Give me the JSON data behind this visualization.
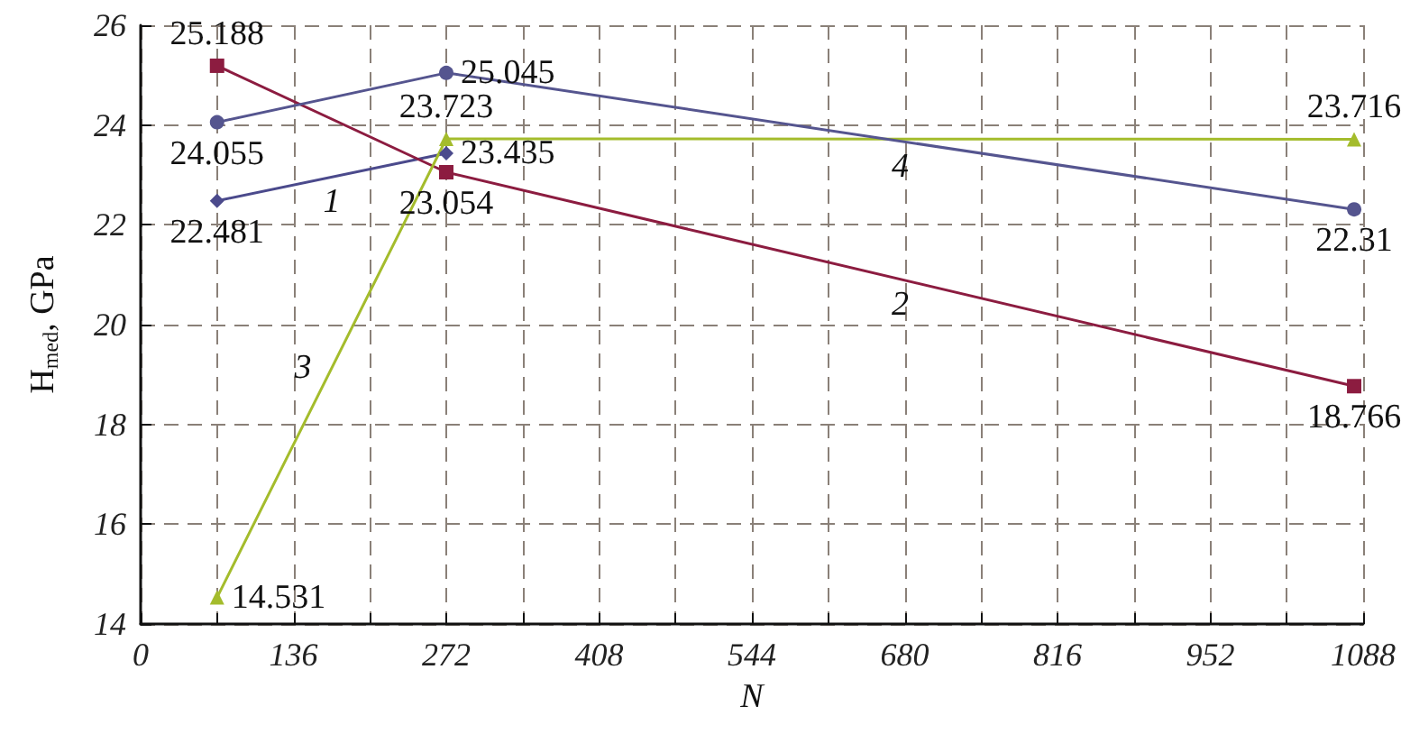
{
  "chart_data": {
    "type": "line",
    "xlabel": "N",
    "ylabel": "H$_{med}$, GPa",
    "xlim": [
      0,
      1088
    ],
    "xticks": [
      0,
      {
        "value": 68,
        "label": null
      },
      136,
      {
        "value": 204,
        "label": null
      },
      272,
      {
        "value": 340,
        "label": null
      },
      408,
      {
        "value": 476,
        "label": null
      },
      544,
      {
        "value": 612,
        "label": null
      },
      680,
      {
        "value": 748,
        "label": null
      },
      816,
      {
        "value": 884,
        "label": null
      },
      952,
      {
        "value": 1020,
        "label": null
      },
      1088
    ],
    "ylim": [
      14,
      26
    ],
    "yticks": [
      14,
      16,
      18,
      20,
      22,
      24,
      26
    ],
    "grid": true,
    "line_style": "solid",
    "data_labels": true,
    "series": [
      {
        "name": "1",
        "color": "#4b4a8c",
        "marker": "diamond",
        "x": [
          68,
          272
        ],
        "values": [
          22.481,
          23.435
        ]
      },
      {
        "name": "2",
        "color": "#8c1c40",
        "marker": "square",
        "x": [
          68,
          272,
          1080
        ],
        "values": [
          25.188,
          23.054,
          18.766
        ]
      },
      {
        "name": "3",
        "color": "#a4bc2c",
        "marker": "triangle",
        "x": [
          68,
          272,
          1080
        ],
        "values": [
          14.531,
          23.723,
          23.716
        ]
      },
      {
        "name": "4",
        "color": "#55558f",
        "marker": "circle",
        "x": [
          68,
          272,
          1080
        ],
        "values": [
          24.055,
          25.045,
          22.31
        ]
      }
    ]
  }
}
